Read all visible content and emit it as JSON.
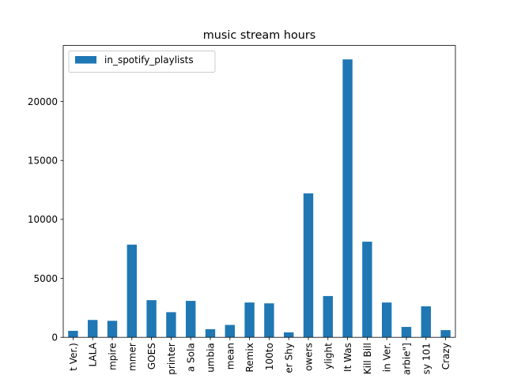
{
  "chart_data": {
    "type": "bar",
    "title": "music stream hours",
    "xlabel": "",
    "ylabel": "",
    "categories": [
      "t Ver.)",
      "LALA",
      "mpire",
      "mmer",
      "GOES",
      "printer",
      "a Sola",
      "umbia",
      "mean",
      "Remix",
      "100to",
      "er Shy",
      "owers",
      "ylight",
      "It Was",
      "Kill Bill",
      "in Ver.",
      "arbie\"]",
      "sy 101",
      "Crazy"
    ],
    "series": [
      {
        "name": "in_spotify_playlists",
        "color": "#1f77b4",
        "values": [
          550,
          1470,
          1400,
          7860,
          3150,
          2130,
          3090,
          690,
          1050,
          2950,
          2880,
          420,
          12210,
          3500,
          23570,
          8110,
          2950,
          880,
          2630,
          610
        ]
      }
    ],
    "ylim": [
      0,
      24750
    ],
    "yticks": [
      0,
      5000,
      10000,
      15000,
      20000
    ],
    "ytick_labels": [
      "0",
      "5000",
      "10000",
      "15000",
      "20000"
    ],
    "grid": false,
    "legend_position": "top-left"
  }
}
